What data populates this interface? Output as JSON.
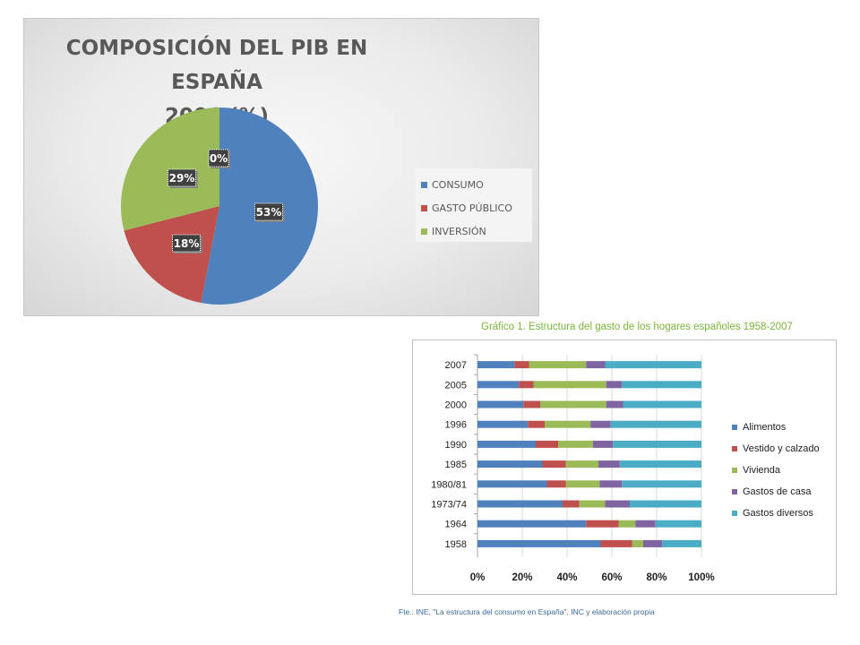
{
  "chart_data": [
    {
      "type": "pie",
      "title": "COMPOSICIÓN DEL PIB EN ESPAÑA 2006 (%)",
      "title_lines": [
        "COMPOSICIÓN DEL PIB EN ESPAÑA",
        "2006 (%)"
      ],
      "legend_position": "right",
      "slices": [
        {
          "label": "CONSUMO",
          "value": 53,
          "data_label": "53%",
          "color": "#4f81bd"
        },
        {
          "label": "GASTO PÚBLICO",
          "value": 18,
          "data_label": "18%",
          "color": "#c0504d"
        },
        {
          "label": "INVERSIÓN",
          "value": 29,
          "data_label": "29%",
          "color": "#9bbb59"
        },
        {
          "label": "",
          "value": 0,
          "data_label": "0%",
          "color": "#8064a2"
        }
      ]
    },
    {
      "type": "bar",
      "orientation": "horizontal",
      "stacked": "percent",
      "title": "Gráfico 1. Estructura del gasto de los hogares españoles 1958-2007",
      "source": "Fte.: INE, \"La estructura del consumo en España\", INC y elaboración propia",
      "legend_position": "right",
      "grid": true,
      "xlim": [
        0,
        100
      ],
      "x_ticks": [
        "0%",
        "20%",
        "40%",
        "60%",
        "80%",
        "100%"
      ],
      "categories": [
        "2007",
        "2005",
        "2000",
        "1996",
        "1990",
        "1985",
        "1980/81",
        "1973/74",
        "1964",
        "1958"
      ],
      "series": [
        {
          "name": "Alimentos",
          "color": "#4f81bd",
          "values": [
            16.5,
            18.5,
            20.5,
            22.5,
            26,
            29,
            31,
            38,
            48.5,
            55
          ]
        },
        {
          "name": "Vestido y calzado",
          "color": "#c0504d",
          "values": [
            6.5,
            6.5,
            7.5,
            7.5,
            10,
            10.5,
            8.5,
            7.5,
            14.5,
            14
          ]
        },
        {
          "name": "Vivienda",
          "color": "#9bbb59",
          "values": [
            25.5,
            32.5,
            29.5,
            20.5,
            15.5,
            14.5,
            15,
            11.5,
            7.5,
            5
          ]
        },
        {
          "name": "Gastos de casa",
          "color": "#8064a2",
          "values": [
            8.5,
            7,
            7.5,
            9,
            9,
            9.5,
            10,
            11,
            9,
            8.5
          ]
        },
        {
          "name": "Gastos diversos",
          "color": "#4bacc6",
          "values": [
            43,
            35.5,
            35,
            40.5,
            39.5,
            36.5,
            35.5,
            32,
            20.5,
            17.5
          ]
        }
      ]
    }
  ]
}
